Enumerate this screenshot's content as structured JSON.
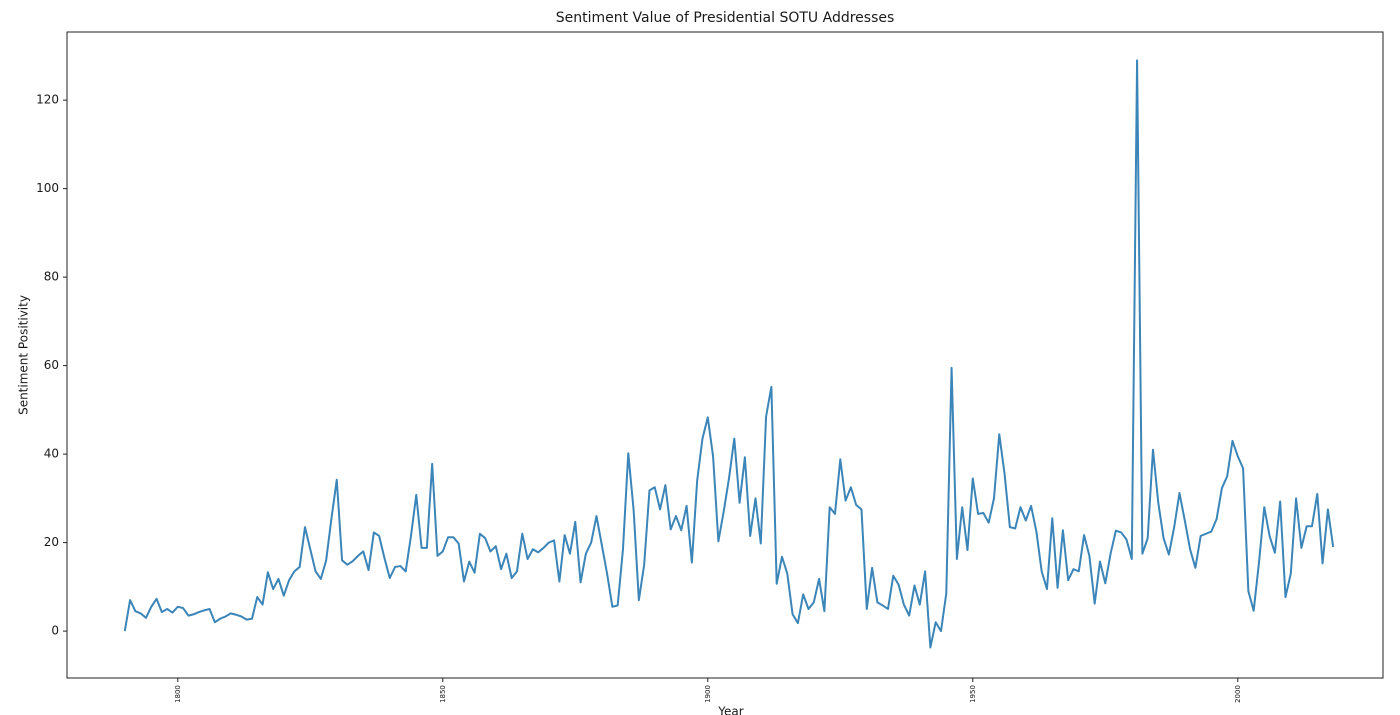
{
  "chart_data": {
    "type": "line",
    "title": "Sentiment Value of Presidential SOTU Addresses",
    "xlabel": "Year",
    "ylabel": "Sentiment Positivity",
    "x": [
      1790,
      1791,
      1792,
      1793,
      1794,
      1795,
      1796,
      1797,
      1798,
      1799,
      1800,
      1801,
      1802,
      1803,
      1804,
      1805,
      1806,
      1807,
      1808,
      1809,
      1810,
      1811,
      1812,
      1813,
      1814,
      1815,
      1816,
      1817,
      1818,
      1819,
      1820,
      1821,
      1822,
      1823,
      1824,
      1825,
      1826,
      1827,
      1828,
      1829,
      1830,
      1831,
      1832,
      1833,
      1834,
      1835,
      1836,
      1837,
      1838,
      1839,
      1840,
      1841,
      1842,
      1843,
      1844,
      1845,
      1846,
      1847,
      1848,
      1849,
      1850,
      1851,
      1852,
      1853,
      1854,
      1855,
      1856,
      1857,
      1858,
      1859,
      1860,
      1861,
      1862,
      1863,
      1864,
      1865,
      1866,
      1867,
      1868,
      1869,
      1870,
      1871,
      1872,
      1873,
      1874,
      1875,
      1876,
      1877,
      1878,
      1879,
      1880,
      1881,
      1882,
      1883,
      1884,
      1885,
      1886,
      1887,
      1888,
      1889,
      1890,
      1891,
      1892,
      1893,
      1894,
      1895,
      1896,
      1897,
      1898,
      1899,
      1900,
      1901,
      1902,
      1903,
      1904,
      1905,
      1906,
      1907,
      1908,
      1909,
      1910,
      1911,
      1912,
      1913,
      1914,
      1915,
      1916,
      1917,
      1918,
      1919,
      1920,
      1921,
      1922,
      1923,
      1924,
      1925,
      1926,
      1927,
      1928,
      1929,
      1930,
      1931,
      1932,
      1933,
      1934,
      1935,
      1936,
      1937,
      1938,
      1939,
      1940,
      1941,
      1942,
      1943,
      1944,
      1945,
      1946,
      1947,
      1948,
      1949,
      1950,
      1951,
      1952,
      1953,
      1954,
      1955,
      1956,
      1957,
      1958,
      1959,
      1960,
      1961,
      1962,
      1963,
      1964,
      1965,
      1966,
      1967,
      1968,
      1969,
      1970,
      1971,
      1972,
      1973,
      1974,
      1975,
      1976,
      1977,
      1978,
      1979,
      1980,
      1981,
      1982,
      1983,
      1984,
      1985,
      1986,
      1987,
      1988,
      1989,
      1990,
      1991,
      1992,
      1993,
      1994,
      1995,
      1996,
      1997,
      1998,
      1999,
      2000,
      2001,
      2002,
      2003,
      2004,
      2005,
      2006,
      2007,
      2008,
      2009,
      2010,
      2011,
      2012,
      2013,
      2014,
      2015,
      2016,
      2017,
      2018
    ],
    "series": [
      {
        "color": "#3b85b8",
        "values": [
          0,
          7,
          4.5,
          4,
          3,
          5.5,
          7.3,
          4.3,
          5,
          4.2,
          5.5,
          5.2,
          3.5,
          3.8,
          4.3,
          4.7,
          5,
          2,
          2.8,
          3.3,
          4,
          3.7,
          3.3,
          2.6,
          2.8,
          7.7,
          6,
          13.3,
          9.5,
          11.8,
          8,
          11.5,
          13.5,
          14.5,
          23.5,
          18.5,
          13.5,
          11.8,
          16,
          25.5,
          34.2,
          16,
          15,
          15.8,
          17,
          18,
          13.8,
          22.3,
          21.5,
          16.5,
          12,
          14.5,
          14.7,
          13.5,
          21.5,
          30.8,
          18.8,
          18.8,
          37.8,
          17,
          18,
          21.2,
          21.2,
          19.8,
          11.2,
          15.7,
          13.2,
          22,
          21,
          18,
          19.2,
          14,
          17.5,
          12,
          13.5,
          22,
          16.3,
          18.5,
          17.8,
          18.8,
          20,
          20.5,
          11.2,
          21.7,
          17.5,
          24.7,
          11,
          17.5,
          20,
          26,
          19.5,
          13,
          5.5,
          5.8,
          18.5,
          40.2,
          27.5,
          7,
          15,
          31.8,
          32.5,
          27.5,
          33,
          23,
          26,
          22.8,
          28.3,
          15.5,
          34,
          43.5,
          48.3,
          39.5,
          20.3,
          27,
          34.5,
          43.5,
          29,
          39.3,
          21.5,
          30,
          19.8,
          48.5,
          55.2,
          10.7,
          16.8,
          13,
          3.8,
          1.8,
          8.3,
          5,
          6.5,
          11.8,
          4.5,
          28,
          26.5,
          38.8,
          29.5,
          32.5,
          28.5,
          27.5,
          5,
          14.3,
          6.5,
          5.8,
          5,
          12.5,
          10.5,
          6,
          3.5,
          10.3,
          6,
          13.5,
          -3.7,
          2,
          0,
          8.5,
          59.5,
          16.3,
          28,
          18.3,
          34.5,
          26.5,
          26.7,
          24.5,
          30,
          44.5,
          35.5,
          23.5,
          23.2,
          28,
          25,
          28.3,
          22.5,
          13.5,
          9.5,
          25.5,
          9.8,
          22.8,
          11.5,
          14,
          13.5,
          21.7,
          17,
          6.2,
          15.7,
          10.8,
          17.5,
          22.7,
          22.3,
          20.7,
          16.3,
          129,
          17.5,
          21,
          41,
          29,
          21,
          17.3,
          23.5,
          31.2,
          25,
          18.5,
          14.3,
          21.5,
          22,
          22.5,
          25.3,
          32.3,
          35,
          43,
          39.5,
          36.8,
          9,
          4.6,
          15.5,
          28,
          21.5,
          17.7,
          29.3,
          7.7,
          13,
          30,
          18.8,
          23.7,
          23.7,
          31,
          15.3,
          27.5,
          19
        ]
      }
    ],
    "xlim": [
      1779.1,
      2027.4
    ],
    "ylim": [
      -10.6,
      135.4
    ],
    "xticks": [
      1800,
      1850,
      1900,
      1950,
      2000
    ],
    "yticks": [
      0,
      20,
      40,
      60,
      80,
      100,
      120
    ],
    "grid": false
  }
}
